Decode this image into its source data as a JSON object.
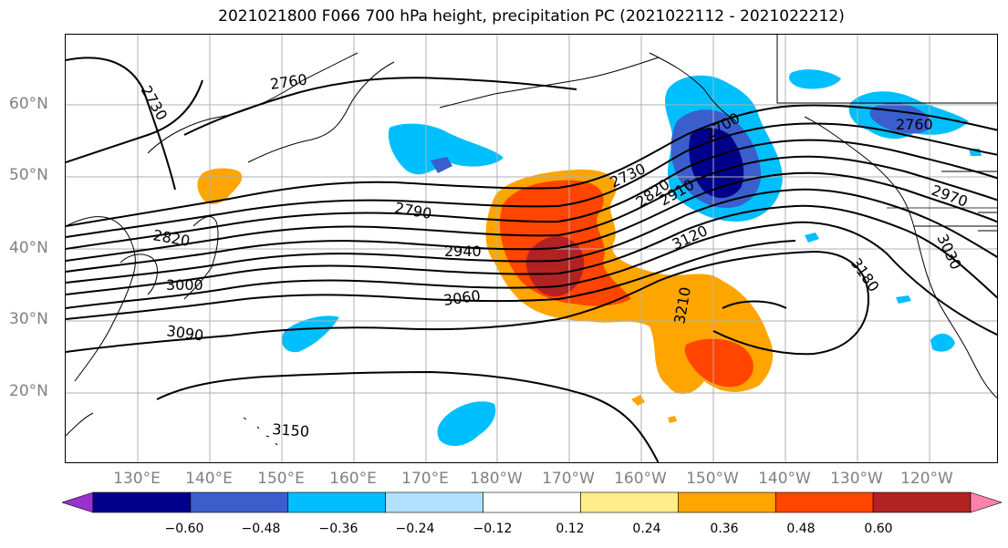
{
  "title": "2021021800 F066 700 hPa height, precipitation PC (2021022112 - 2021022212)",
  "lat_labels": [
    "60°N",
    "50°N",
    "40°N",
    "30°N",
    "20°N"
  ],
  "lon_labels": [
    "130°E",
    "140°E",
    "150°E",
    "160°E",
    "170°E",
    "180°W",
    "170°W",
    "160°W",
    "150°W",
    "140°W",
    "130°W",
    "120°W"
  ],
  "colorbar": {
    "ticks": [
      "−0.60",
      "−0.48",
      "−0.36",
      "−0.24",
      "−0.12",
      "0.12",
      "0.24",
      "0.36",
      "0.48",
      "0.60"
    ],
    "colors": [
      "#9932cc",
      "#00008b",
      "#3a5fcd",
      "#00bfff",
      "#b0e2ff",
      "#ffffff",
      "#ffec8b",
      "#ffa500",
      "#ff4500",
      "#b22222",
      "#ff82ab"
    ]
  },
  "contour_labels": [
    {
      "text": "2760",
      "name": "contour-label-2760-north"
    },
    {
      "text": "2730",
      "name": "contour-label-2730-west"
    },
    {
      "text": "2820",
      "name": "contour-label-2820"
    },
    {
      "text": "2790",
      "name": "contour-label-2790"
    },
    {
      "text": "2940",
      "name": "contour-label-2940"
    },
    {
      "text": "3000",
      "name": "contour-label-3000"
    },
    {
      "text": "3060",
      "name": "contour-label-3060"
    },
    {
      "text": "3090",
      "name": "contour-label-3090"
    },
    {
      "text": "3150",
      "name": "contour-label-3150"
    },
    {
      "text": "2730",
      "name": "contour-label-2730-center"
    },
    {
      "text": "2820",
      "name": "contour-label-2820-center"
    },
    {
      "text": "2910",
      "name": "contour-label-2910"
    },
    {
      "text": "3120",
      "name": "contour-label-3120"
    },
    {
      "text": "3210",
      "name": "contour-label-3210"
    },
    {
      "text": "3180",
      "name": "contour-label-3180"
    },
    {
      "text": "2700",
      "name": "contour-label-2700"
    },
    {
      "text": "2760",
      "name": "contour-label-2760-east"
    },
    {
      "text": "2970",
      "name": "contour-label-2970"
    },
    {
      "text": "3030",
      "name": "contour-label-3030"
    }
  ]
}
